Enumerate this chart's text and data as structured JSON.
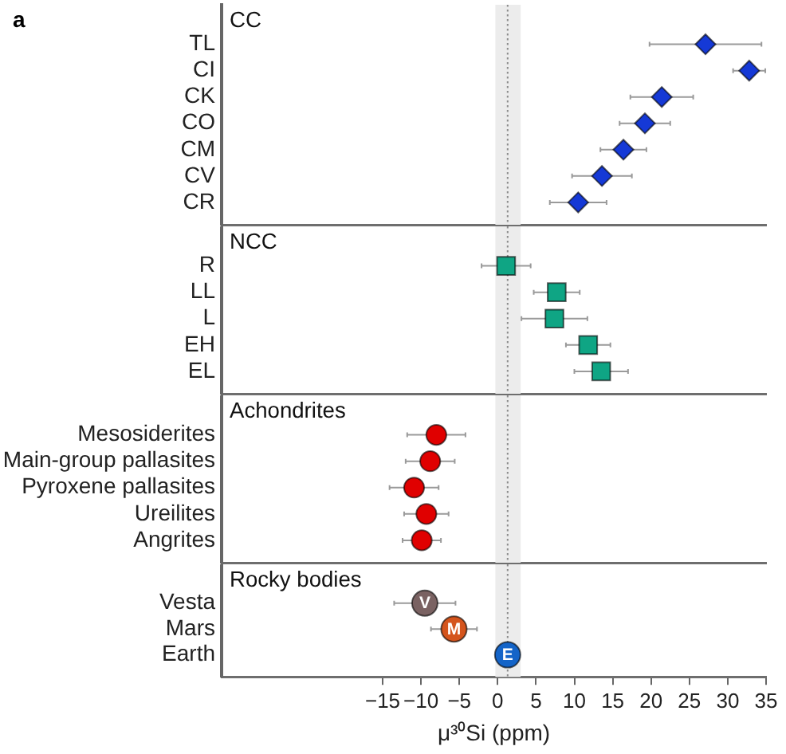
{
  "chart_data": [
    {
      "type": "scatter",
      "title": "CC",
      "orientation": "horizontal",
      "categories": [
        "TL",
        "CI",
        "CK",
        "CO",
        "CM",
        "CV",
        "CR"
      ],
      "values": [
        27.1,
        32.8,
        21.4,
        19.2,
        16.4,
        13.6,
        10.5
      ],
      "errors": [
        7.3,
        2.1,
        4.1,
        3.3,
        3.0,
        3.9,
        3.7
      ],
      "color": "#1539d6",
      "marker": "diamond",
      "xlim": [
        -36,
        35
      ],
      "tick_labels": "y",
      "ref_lines": [
        {
          "axis": "x",
          "value": 1.3,
          "line_style": "dotted",
          "color": "#8c8c8c"
        }
      ],
      "bands": [
        {
          "axis": "x",
          "from": -0.3,
          "to": 3.0,
          "color": "#ececec"
        }
      ],
      "annotations": [
        "a"
      ]
    },
    {
      "type": "scatter",
      "title": "NCC",
      "orientation": "horizontal",
      "categories": [
        "R",
        "LL",
        "L",
        "EH",
        "EL"
      ],
      "values": [
        1.1,
        7.7,
        7.4,
        11.8,
        13.5
      ],
      "errors": [
        3.2,
        3.0,
        4.3,
        2.9,
        3.5
      ],
      "color": "#0fa584",
      "marker": "square",
      "xlim": [
        -36,
        35
      ],
      "tick_labels": "y",
      "ref_lines": [
        {
          "axis": "x",
          "value": 1.3,
          "line_style": "dotted",
          "color": "#8c8c8c"
        }
      ],
      "bands": [
        {
          "axis": "x",
          "from": -0.3,
          "to": 3.0,
          "color": "#ececec"
        }
      ]
    },
    {
      "type": "scatter",
      "title": "Achondrites",
      "orientation": "horizontal",
      "categories": [
        "Mesosiderites",
        "Main-group pallasites",
        "Pyroxene pallasites",
        "Ureilites",
        "Angrites"
      ],
      "values": [
        -8.0,
        -8.8,
        -10.9,
        -9.3,
        -9.9
      ],
      "errors": [
        3.8,
        3.2,
        3.2,
        2.9,
        2.5
      ],
      "color": "#e00000",
      "marker": "circle",
      "xlim": [
        -36,
        35
      ],
      "tick_labels": "y",
      "ref_lines": [
        {
          "axis": "x",
          "value": 1.3,
          "line_style": "dotted",
          "color": "#8c8c8c"
        }
      ],
      "bands": [
        {
          "axis": "x",
          "from": -0.3,
          "to": 3.0,
          "color": "#ececec"
        }
      ]
    },
    {
      "type": "scatter",
      "title": "Rocky bodies",
      "orientation": "horizontal",
      "categories": [
        "Vesta",
        "Mars",
        "Earth"
      ],
      "values": [
        -9.5,
        -5.7,
        1.3
      ],
      "errors": [
        4.0,
        3.0,
        null
      ],
      "colors": [
        "#7a6262",
        "#d4541c",
        "#1464c8"
      ],
      "marker": "circle",
      "xlabel": "μ³⁰Si (ppm)",
      "xlim": [
        -36,
        35
      ],
      "xticks": [
        {
          "value": -15,
          "label": "−15"
        },
        {
          "value": -10,
          "label": "−10"
        },
        {
          "value": -5,
          "label": "−5"
        },
        0,
        5,
        10,
        15,
        20,
        25,
        30,
        35
      ],
      "ref_lines": [
        {
          "axis": "x",
          "value": 1.3,
          "line_style": "dotted",
          "color": "#8c8c8c"
        }
      ],
      "bands": [
        {
          "axis": "x",
          "from": -0.3,
          "to": 3.0,
          "color": "#ececec"
        }
      ],
      "annotations": [
        {
          "text": "V",
          "x": -9.5,
          "y": "Vesta"
        },
        {
          "text": "M",
          "x": -5.7,
          "y": "Mars"
        },
        {
          "text": "E",
          "x": 1.3,
          "y": "Earth"
        }
      ]
    }
  ]
}
